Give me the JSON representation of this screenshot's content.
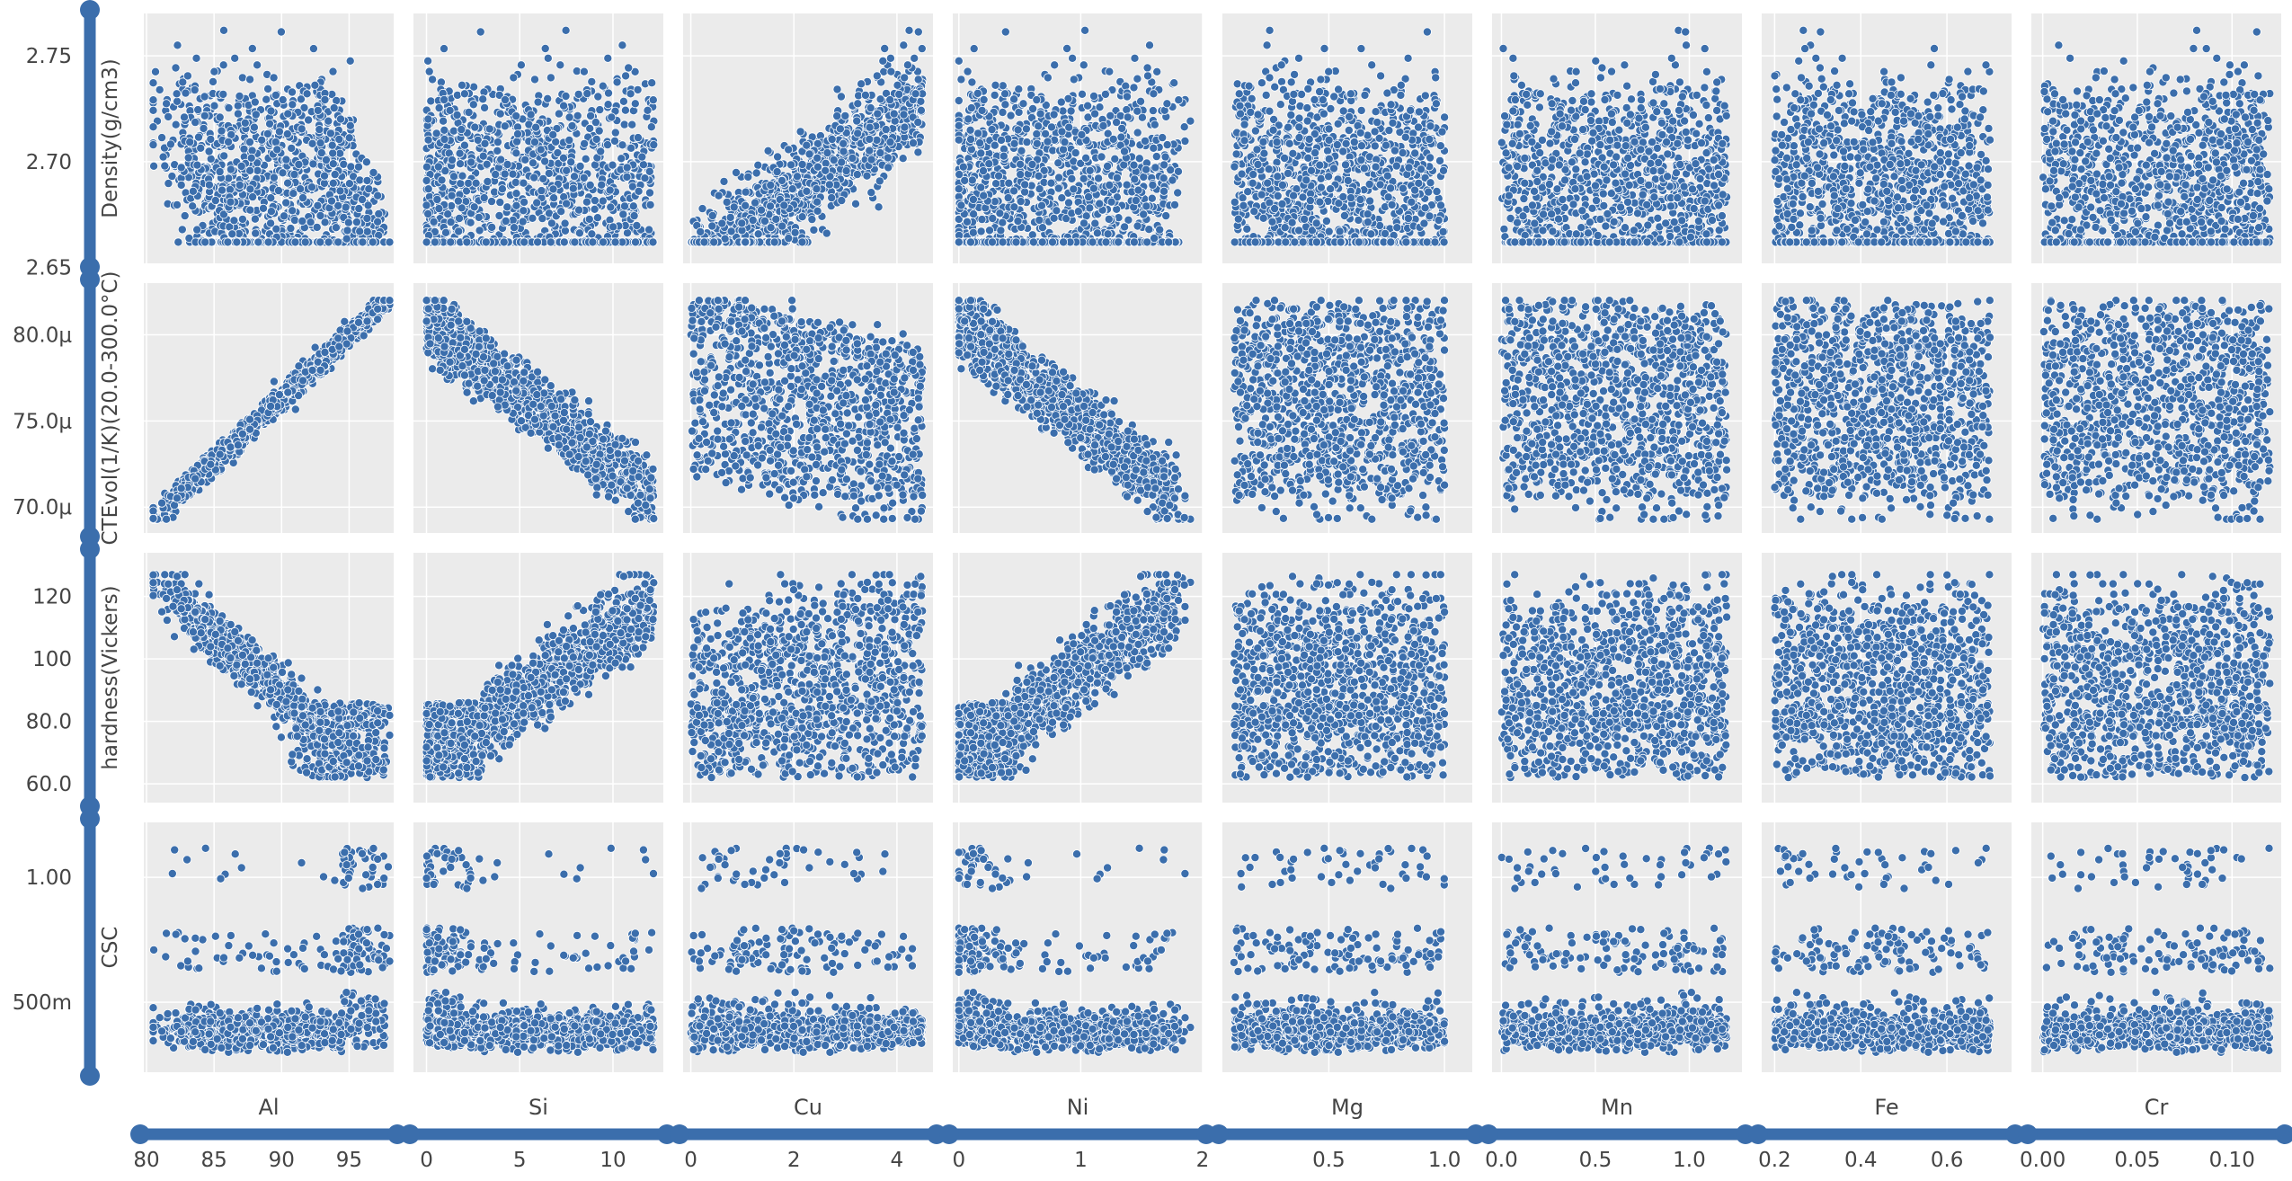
{
  "colors": {
    "point": "#3b6eac",
    "point_edge": "#ffffff",
    "panel_bg": "#ebebeb",
    "grid": "#ffffff",
    "slider": "#3b6eac",
    "text": "#444444"
  },
  "chart_data": {
    "type": "scatter",
    "kind": "pair-grid",
    "x_variables": [
      {
        "name": "Al",
        "range": [
          79.8,
          98.3
        ],
        "ticks": [
          {
            "v": 80,
            "label": "80"
          },
          {
            "v": 85,
            "label": "85"
          },
          {
            "v": 90,
            "label": "90"
          },
          {
            "v": 95,
            "label": "95"
          }
        ]
      },
      {
        "name": "Si",
        "range": [
          -0.7,
          12.7
        ],
        "ticks": [
          {
            "v": 0,
            "label": "0"
          },
          {
            "v": 5,
            "label": "5"
          },
          {
            "v": 10,
            "label": "10"
          }
        ]
      },
      {
        "name": "Cu",
        "range": [
          -0.15,
          4.7
        ],
        "ticks": [
          {
            "v": 0,
            "label": "0"
          },
          {
            "v": 2,
            "label": "2"
          },
          {
            "v": 4,
            "label": "4"
          }
        ]
      },
      {
        "name": "Ni",
        "range": [
          -0.05,
          2.0
        ],
        "ticks": [
          {
            "v": 0,
            "label": "0"
          },
          {
            "v": 1,
            "label": "1"
          },
          {
            "v": 2,
            "label": "2"
          }
        ]
      },
      {
        "name": "Mg",
        "range": [
          0.04,
          1.12
        ],
        "ticks": [
          {
            "v": 0.5,
            "label": "0.5"
          },
          {
            "v": 1.0,
            "label": "1.0"
          }
        ]
      },
      {
        "name": "Mn",
        "range": [
          -0.05,
          1.28
        ],
        "ticks": [
          {
            "v": 0.0,
            "label": "0.0"
          },
          {
            "v": 0.5,
            "label": "0.5"
          },
          {
            "v": 1.0,
            "label": "1.0"
          }
        ]
      },
      {
        "name": "Fe",
        "range": [
          0.17,
          0.75
        ],
        "ticks": [
          {
            "v": 0.2,
            "label": "0.2"
          },
          {
            "v": 0.4,
            "label": "0.4"
          },
          {
            "v": 0.6,
            "label": "0.6"
          }
        ]
      },
      {
        "name": "Cr",
        "range": [
          -0.006,
          0.126
        ],
        "ticks": [
          {
            "v": 0.0,
            "label": "0.00"
          },
          {
            "v": 0.05,
            "label": "0.05"
          },
          {
            "v": 0.1,
            "label": "0.10"
          }
        ]
      }
    ],
    "y_variables": [
      {
        "name": "Density(g/cm3)",
        "range": [
          2.652,
          2.77
        ],
        "ticks": [
          {
            "v": 2.65,
            "label": "2.65"
          },
          {
            "v": 2.7,
            "label": "2.70"
          },
          {
            "v": 2.75,
            "label": "2.75"
          }
        ]
      },
      {
        "name": "CTEvol(1/K)(20.0-300.0°C)",
        "range": [
          68.5,
          83.0
        ],
        "ticks": [
          {
            "v": 70,
            "label": "70.0μ"
          },
          {
            "v": 75,
            "label": "75.0μ"
          },
          {
            "v": 80,
            "label": "80.0μ"
          }
        ]
      },
      {
        "name": "hardness(Vickers)",
        "range": [
          54,
          134
        ],
        "ticks": [
          {
            "v": 60,
            "label": "60.0"
          },
          {
            "v": 80,
            "label": "80.0"
          },
          {
            "v": 100,
            "label": "100"
          },
          {
            "v": 120,
            "label": "120"
          }
        ]
      },
      {
        "name": "CSC",
        "range": [
          0.22,
          1.22
        ],
        "ticks": [
          {
            "v": 0.5,
            "label": "500m"
          },
          {
            "v": 1.0,
            "label": "1.00"
          }
        ]
      }
    ],
    "grid": true,
    "legend": "none"
  }
}
